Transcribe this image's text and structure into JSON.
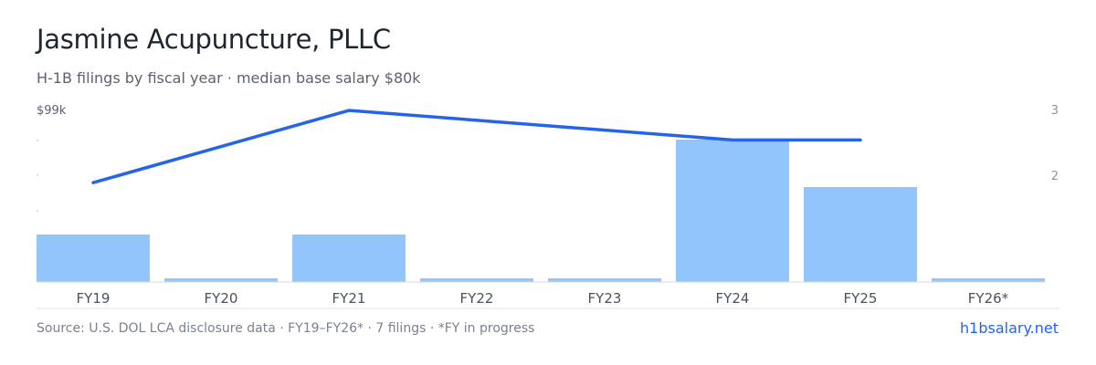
{
  "header": {
    "title": "Jasmine Acupuncture, PLLC",
    "subtitle": "H-1B filings by fiscal year · median base salary $80k"
  },
  "chart_data": {
    "type": "bar",
    "categories": [
      "FY19",
      "FY20",
      "FY21",
      "FY22",
      "FY23",
      "FY24",
      "FY25",
      "FY26*"
    ],
    "series": [
      {
        "type": "bar",
        "axis": "left",
        "values": [
          1,
          0,
          1,
          0,
          0,
          3,
          2,
          0
        ]
      },
      {
        "type": "line",
        "axis": "right",
        "values": [
          1.9,
          null,
          3.0,
          null,
          null,
          2.55,
          2.55,
          null
        ]
      }
    ],
    "left_axis": {
      "top_label": "$99k"
    },
    "right_axis": {
      "ticks": [
        3,
        2
      ]
    },
    "colors": {
      "bar": "#93c5fd",
      "line": "#2563eb"
    },
    "grid": false,
    "legend": "none"
  },
  "footer": {
    "source": "Source: U.S. DOL LCA disclosure data · FY19–FY26* · 7 filings · *FY in progress",
    "brand": "h1bsalary.net"
  }
}
